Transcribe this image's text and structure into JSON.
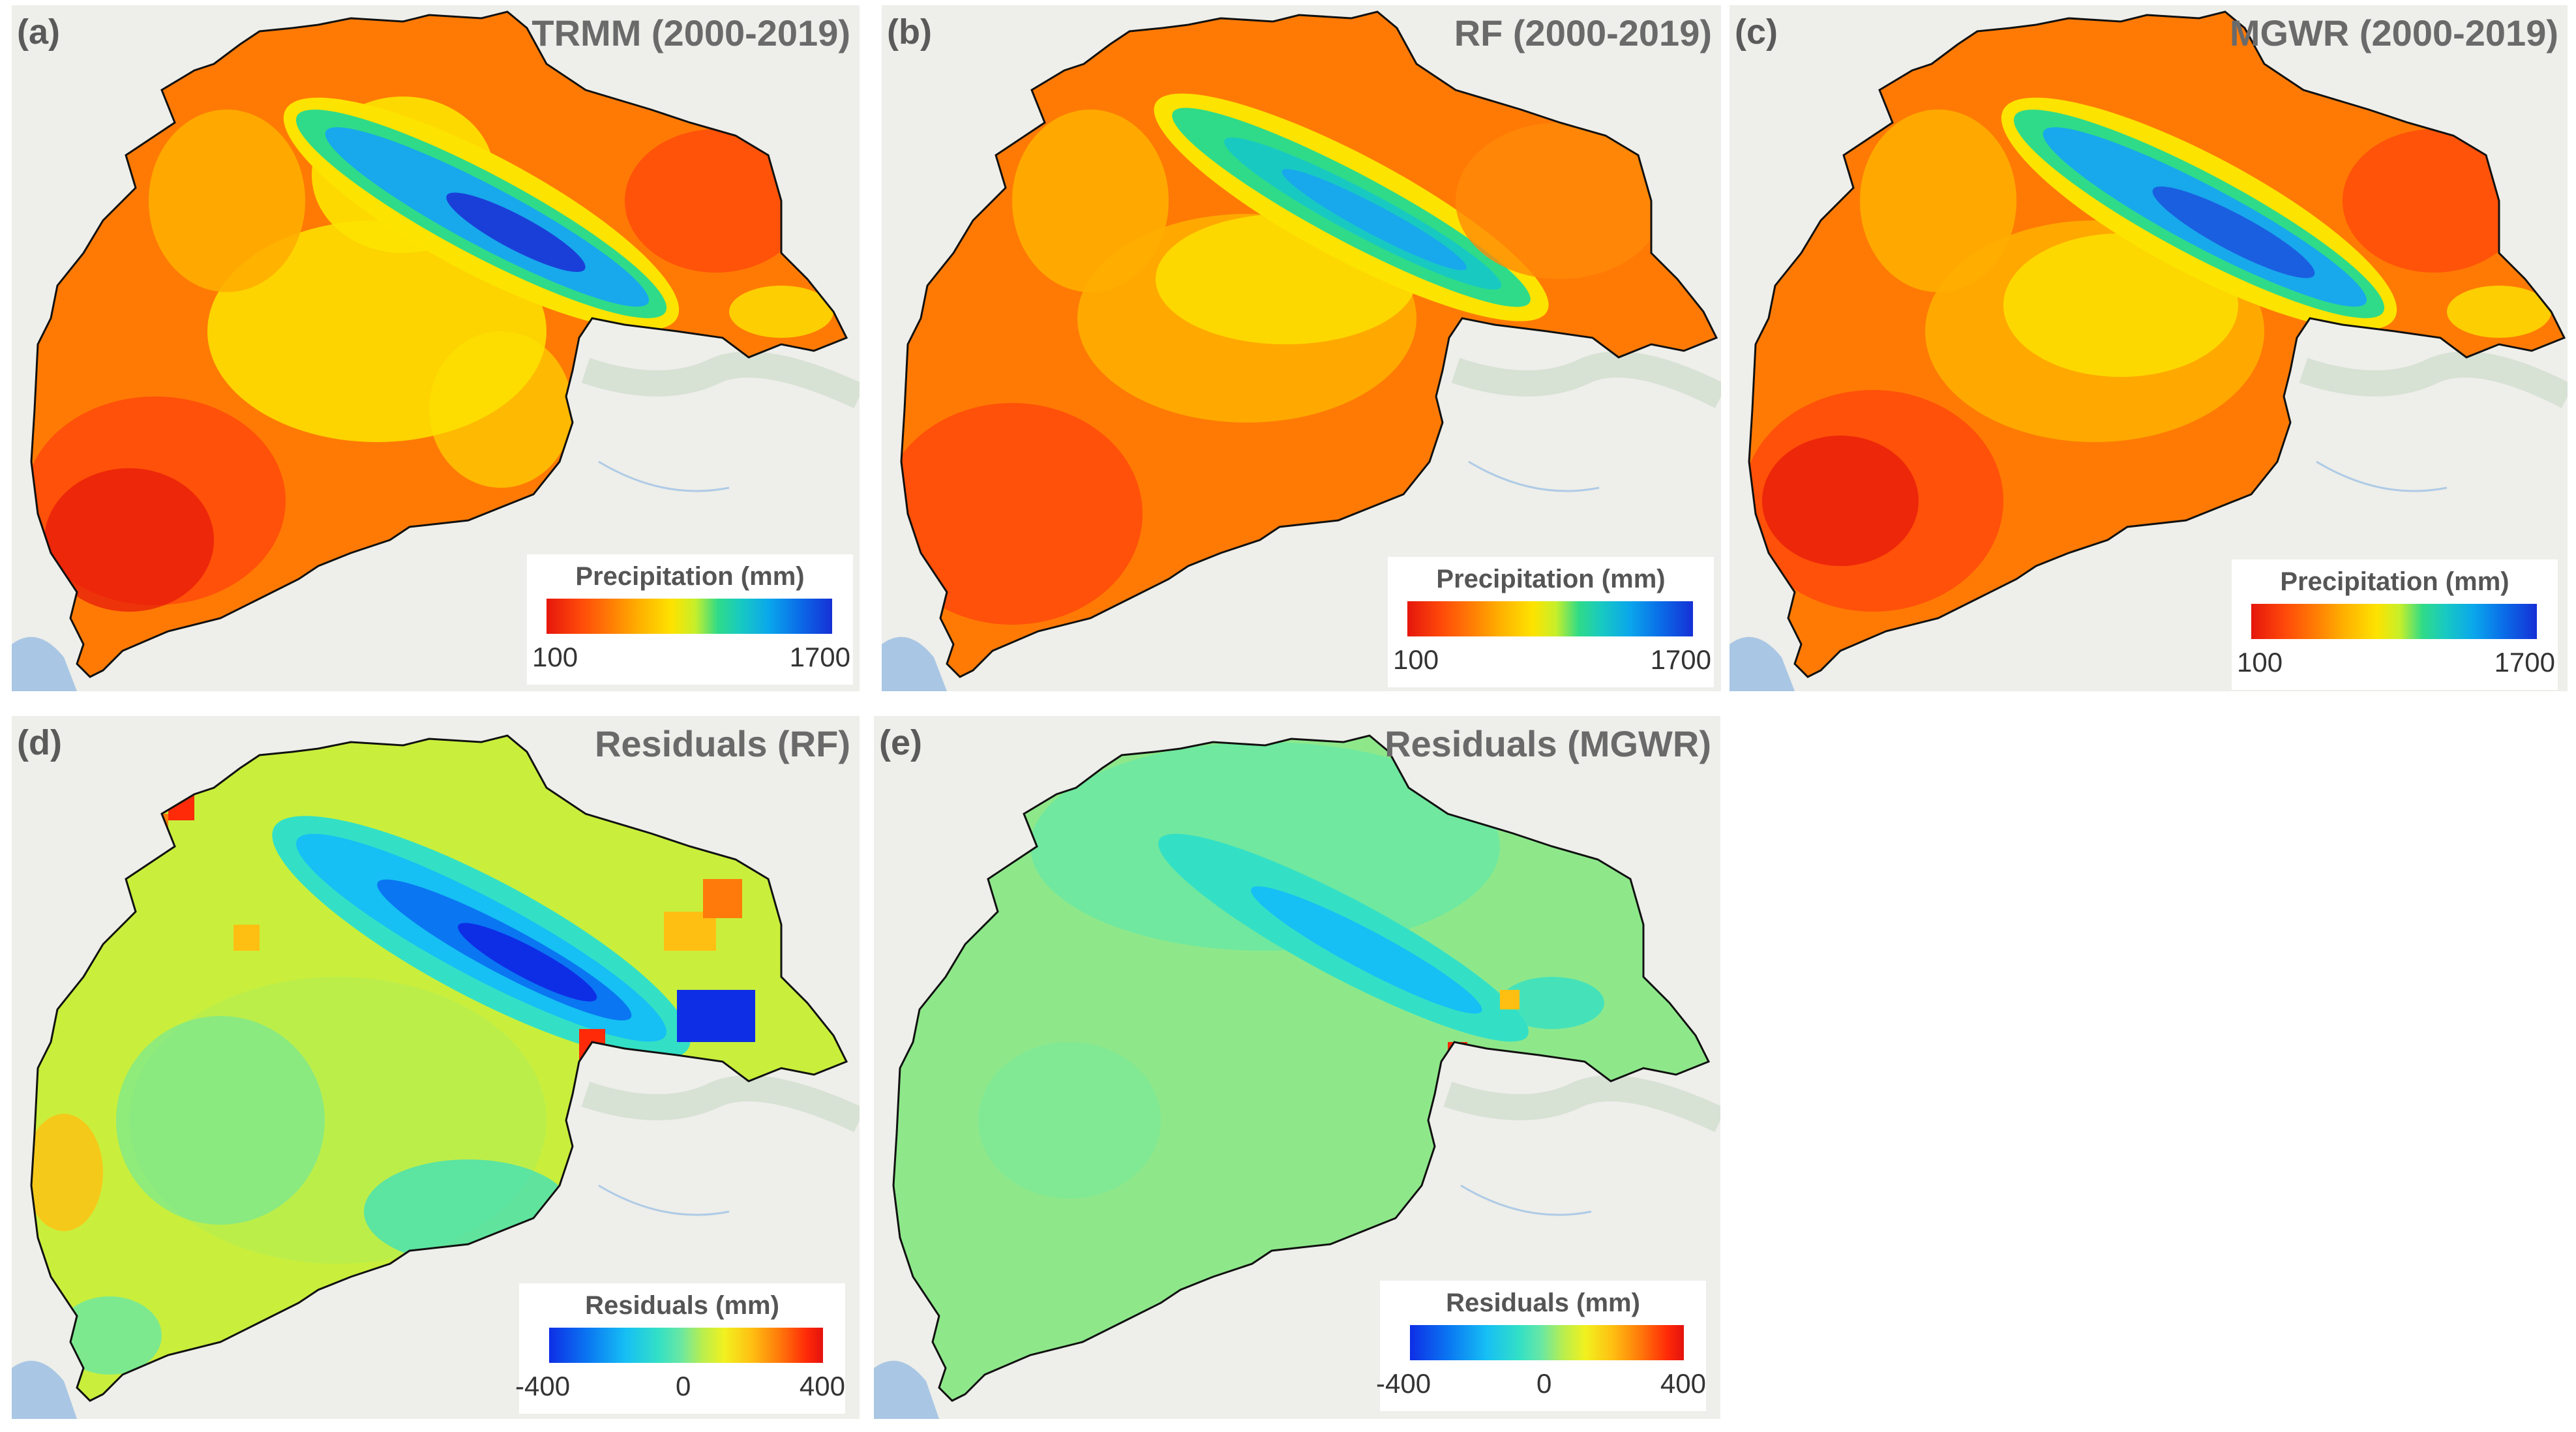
{
  "panels": [
    {
      "id": "a",
      "label": "(a)",
      "title": "TRMM (2000-2019)"
    },
    {
      "id": "b",
      "label": "(b)",
      "title": "RF (2000-2019)"
    },
    {
      "id": "c",
      "label": "(c)",
      "title": "MGWR (2000-2019)"
    },
    {
      "id": "d",
      "label": "(d)",
      "title": "Residuals (RF)"
    },
    {
      "id": "e",
      "label": "(e)",
      "title": "Residuals (MGWR)"
    }
  ],
  "legend_precip": {
    "title": "Precipitation (mm)",
    "min": "100",
    "max": "1700"
  },
  "legend_resid": {
    "title": "Residuals (mm)",
    "min": "-400",
    "mid": "0",
    "max": "400"
  },
  "colors": {
    "basemap": "#eeeeea",
    "water": "#a9c7e4",
    "border": "#111111"
  }
}
